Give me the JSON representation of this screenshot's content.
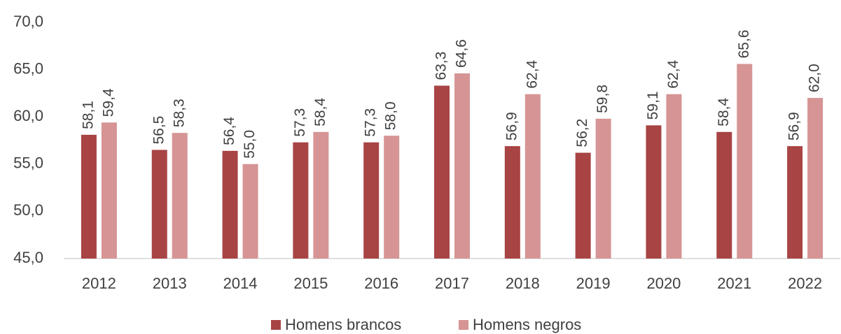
{
  "chart_data": {
    "type": "bar",
    "categories": [
      "2012",
      "2013",
      "2014",
      "2015",
      "2016",
      "2017",
      "2018",
      "2019",
      "2020",
      "2021",
      "2022"
    ],
    "series": [
      {
        "name": "Homens brancos",
        "color": "#a84444",
        "values": [
          58.1,
          56.5,
          56.4,
          57.3,
          57.3,
          63.3,
          56.9,
          56.2,
          59.1,
          58.4,
          56.9
        ],
        "value_labels": [
          "58,1",
          "56,5",
          "56,4",
          "57,3",
          "57,3",
          "63,3",
          "56,9",
          "56,2",
          "59,1",
          "58,4",
          "56,9"
        ]
      },
      {
        "name": "Homens negros",
        "color": "#d69494",
        "values": [
          59.4,
          58.3,
          55.0,
          58.4,
          58.0,
          64.6,
          62.4,
          59.8,
          62.4,
          65.6,
          62.0
        ],
        "value_labels": [
          "59,4",
          "58,3",
          "55,0",
          "58,4",
          "58,0",
          "64,6",
          "62,4",
          "59,8",
          "62,4",
          "65,6",
          "62,0"
        ]
      }
    ],
    "ylim": [
      45,
      70
    ],
    "yticks": [
      {
        "value": 45,
        "label": "45,0"
      },
      {
        "value": 50,
        "label": "50,0"
      },
      {
        "value": 55,
        "label": "55,0"
      },
      {
        "value": 60,
        "label": "60,0"
      },
      {
        "value": 65,
        "label": "65,0"
      },
      {
        "value": 70,
        "label": "70,0"
      }
    ],
    "grid": false,
    "legend": "bottom"
  }
}
